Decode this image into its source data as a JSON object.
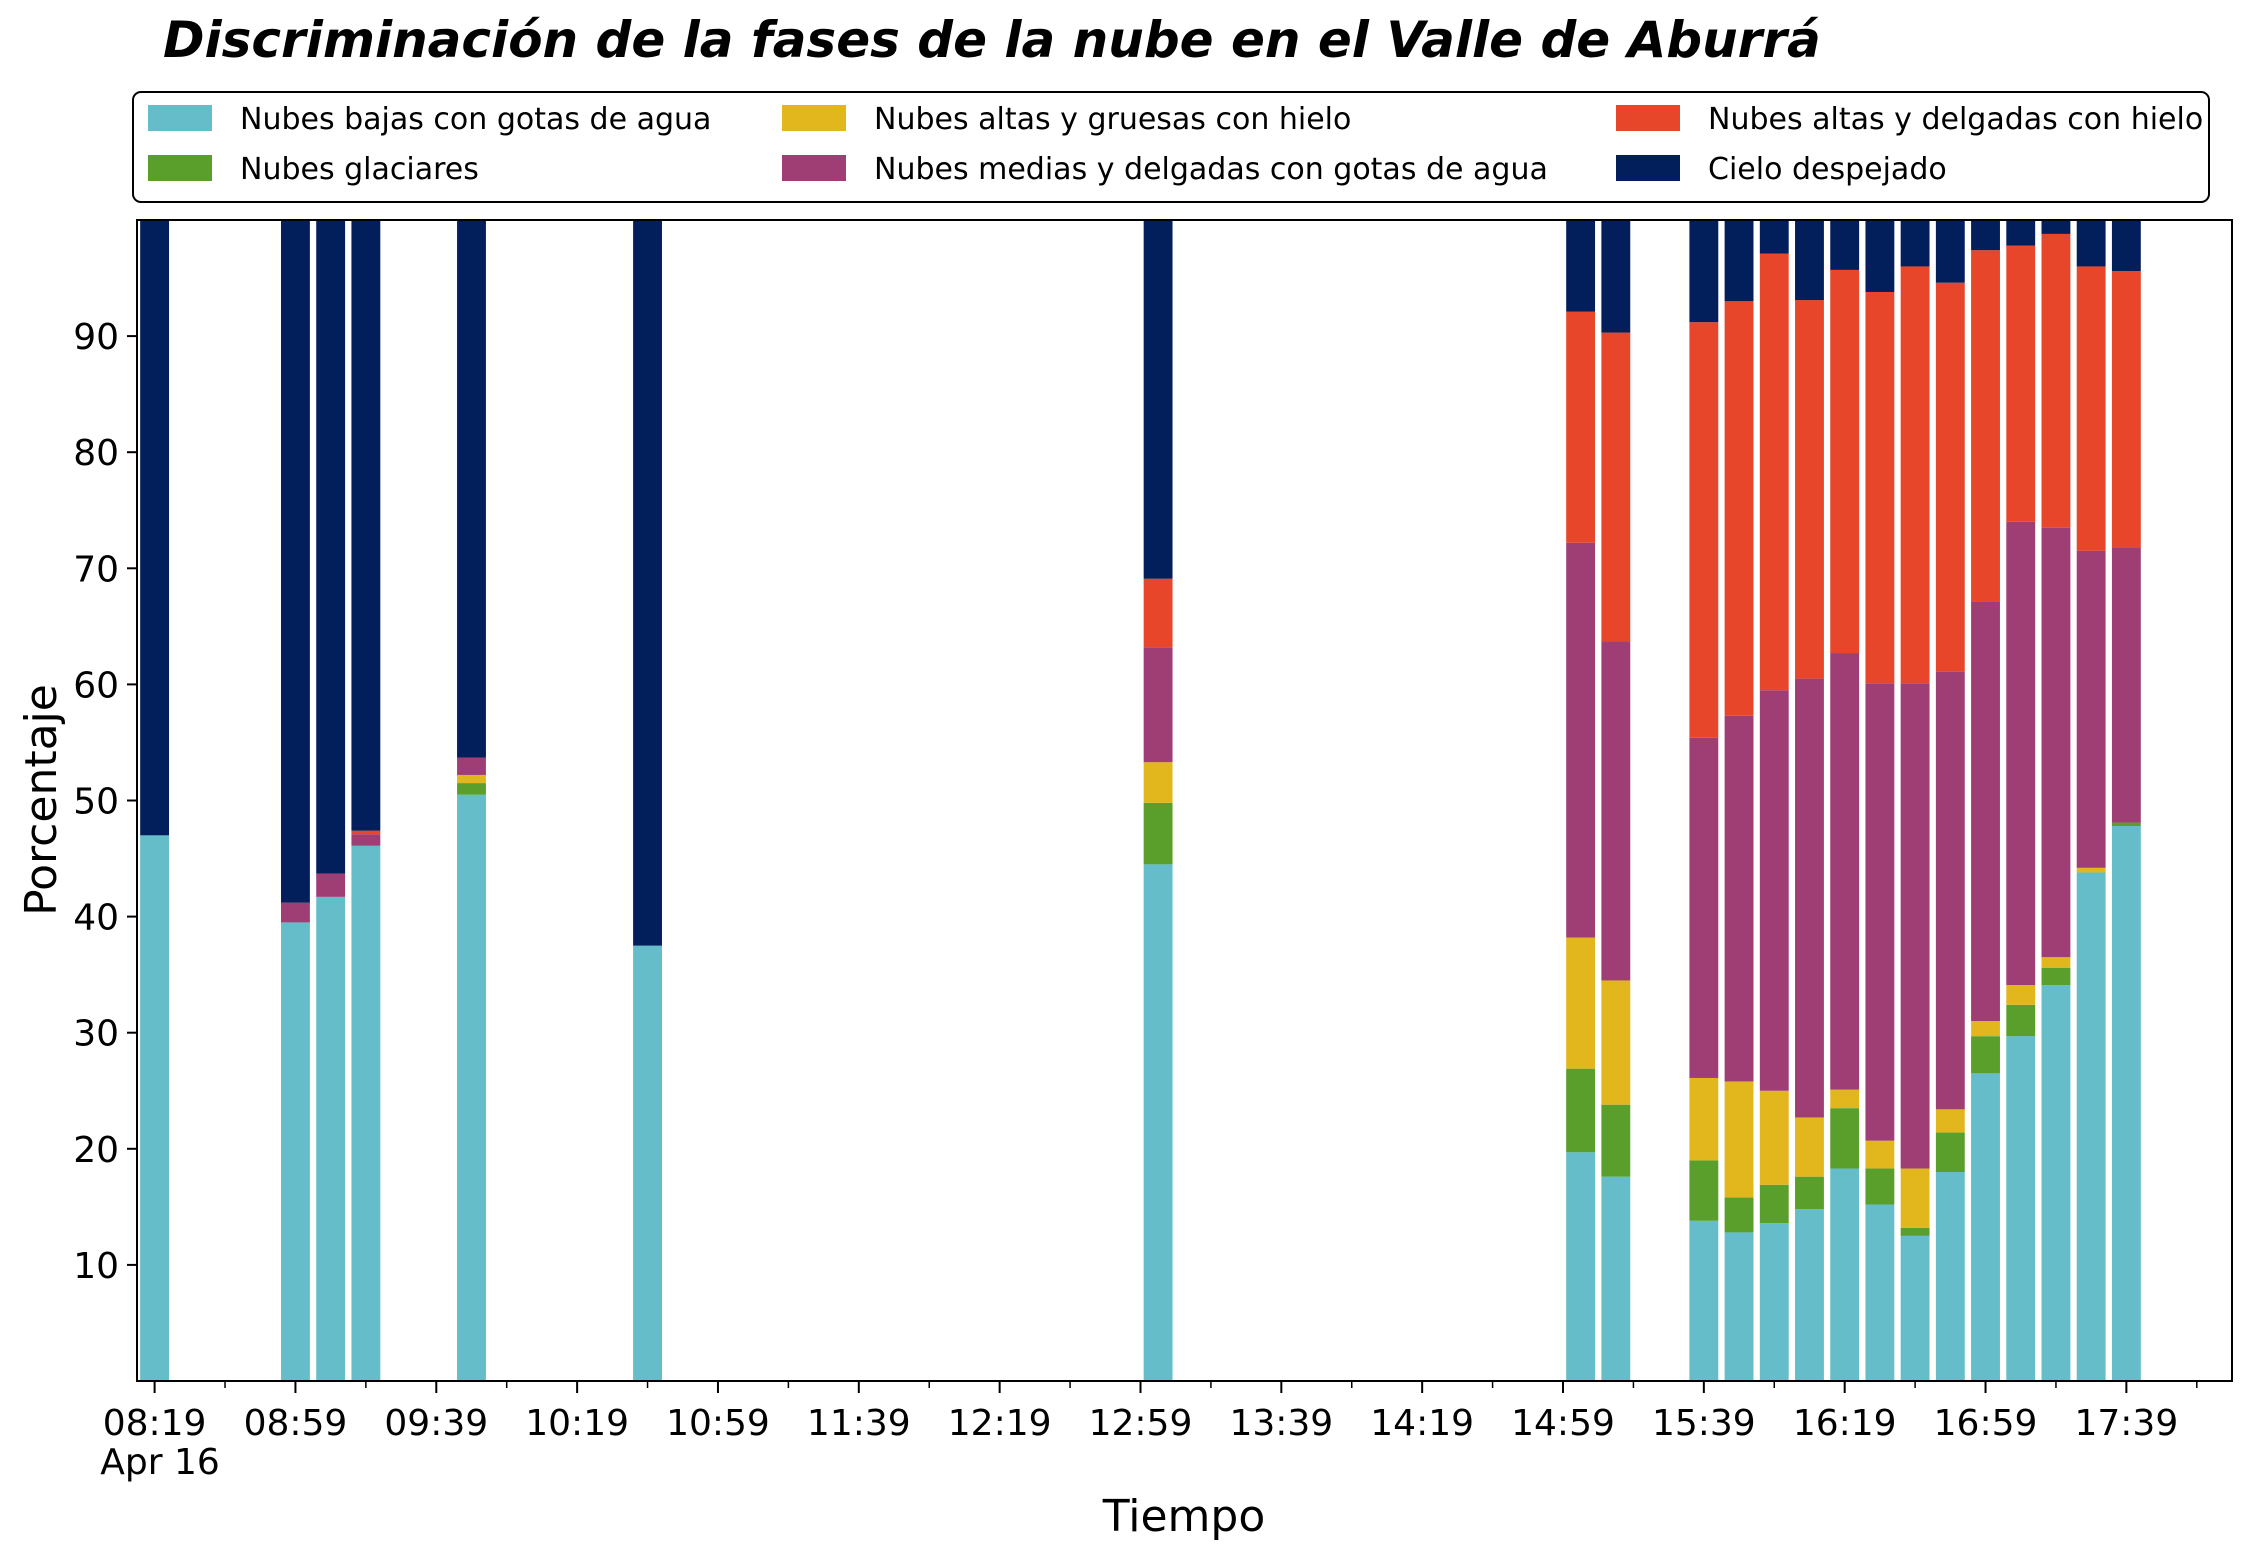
{
  "chart_data": {
    "type": "bar",
    "stacked": true,
    "title": "Discriminación de la fases de la nube en el Valle de Aburrá",
    "xlabel": "Tiempo",
    "ylabel": "Porcentaje",
    "ylim": [
      0,
      100
    ],
    "yticks": [
      10,
      20,
      30,
      40,
      50,
      60,
      70,
      80,
      90
    ],
    "xlim": [
      "08:14",
      "18:09"
    ],
    "xticks": [
      "08:19",
      "08:59",
      "09:39",
      "10:19",
      "10:59",
      "11:39",
      "12:19",
      "12:59",
      "13:39",
      "14:19",
      "14:59",
      "15:39",
      "16:19",
      "16:59",
      "17:39"
    ],
    "xtick_date": "Apr 16",
    "grid": false,
    "legend_position": "top (above plot, 3 columns)",
    "categories": [
      "08:19",
      "08:59",
      "09:09",
      "09:19",
      "09:49",
      "10:39",
      "13:04",
      "15:04",
      "15:14",
      "15:39",
      "15:49",
      "15:59",
      "16:09",
      "16:19",
      "16:29",
      "16:39",
      "16:49",
      "16:59",
      "17:09",
      "17:19",
      "17:29",
      "17:39"
    ],
    "series": [
      {
        "name": "Nubes bajas con gotas de agua",
        "color": "#64BDC8",
        "values": [
          47.0,
          39.5,
          41.7,
          46.1,
          50.5,
          37.5,
          44.5,
          19.7,
          17.6,
          13.8,
          12.8,
          13.6,
          14.8,
          18.3,
          15.2,
          12.5,
          18.0,
          26.5,
          29.7,
          34.1,
          43.8,
          47.8
        ]
      },
      {
        "name": "Nubes glaciares",
        "color": "#5A9E2B",
        "values": [
          0,
          0,
          0,
          0,
          1.0,
          0,
          5.3,
          7.2,
          6.2,
          5.2,
          3.0,
          3.3,
          2.8,
          5.2,
          3.1,
          0.7,
          3.4,
          3.2,
          2.7,
          1.5,
          0,
          0.3
        ]
      },
      {
        "name": "Nubes altas y gruesas con hielo",
        "color": "#E2B71D",
        "values": [
          0,
          0,
          0,
          0,
          0.7,
          0,
          3.5,
          11.3,
          10.7,
          7.1,
          10.0,
          8.1,
          5.1,
          1.6,
          2.4,
          5.1,
          2.0,
          1.3,
          1.7,
          0.9,
          0.4,
          0
        ]
      },
      {
        "name": "Nubes medias y delgadas con gotas de agua",
        "color": "#9E3E75",
        "values": [
          0,
          1.7,
          2.0,
          1.0,
          1.5,
          0,
          9.9,
          34.0,
          29.2,
          29.3,
          31.5,
          34.5,
          37.8,
          37.6,
          39.4,
          41.8,
          37.7,
          36.1,
          39.9,
          37.0,
          27.3,
          23.7
        ]
      },
      {
        "name": "Nubes altas y delgadas con hielo",
        "color": "#E8462A",
        "values": [
          0,
          0,
          0,
          0.3,
          0,
          0,
          5.9,
          19.9,
          26.6,
          35.8,
          35.7,
          37.6,
          32.6,
          33.0,
          33.7,
          35.9,
          33.5,
          30.3,
          23.8,
          25.3,
          24.5,
          23.8
        ]
      },
      {
        "name": "Cielo despejado",
        "color": "#021F5C",
        "values": [
          53.0,
          58.8,
          56.3,
          52.6,
          46.3,
          62.5,
          30.9,
          7.9,
          9.8,
          8.8,
          7.2,
          2.9,
          6.9,
          4.4,
          6.2,
          4.0,
          5.5,
          2.6,
          2.4,
          1.3,
          4.1,
          4.5
        ]
      }
    ]
  }
}
